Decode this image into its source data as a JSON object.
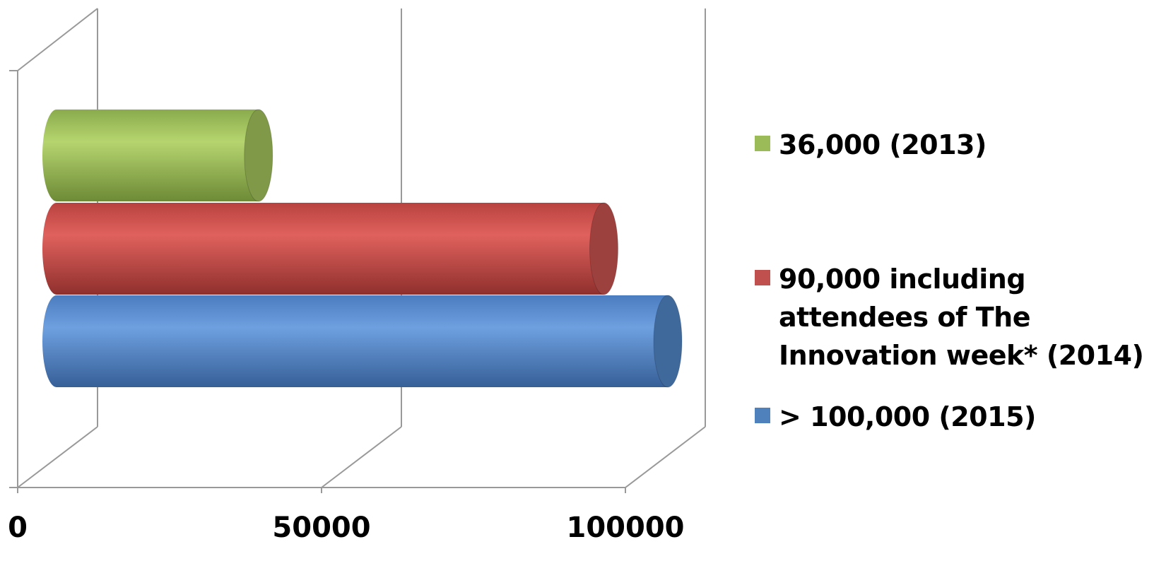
{
  "chart_data": {
    "type": "bar",
    "orientation": "horizontal",
    "style": "3d-cylinder",
    "series": [
      {
        "name": "36,000 (2013)",
        "value": 36000,
        "color": "#9bbb59"
      },
      {
        "name": "90,000 including attendees of The Innovation week* (2014)",
        "value": 90000,
        "color": "#c0504d"
      },
      {
        "name": "> 100,000 (2015)",
        "value": 100000,
        "color": "#4f81bd"
      }
    ],
    "x_ticks": [
      "0",
      "50000",
      "100000"
    ],
    "xlim": [
      0,
      100000
    ],
    "gridlines": true,
    "legend_position": "right"
  }
}
